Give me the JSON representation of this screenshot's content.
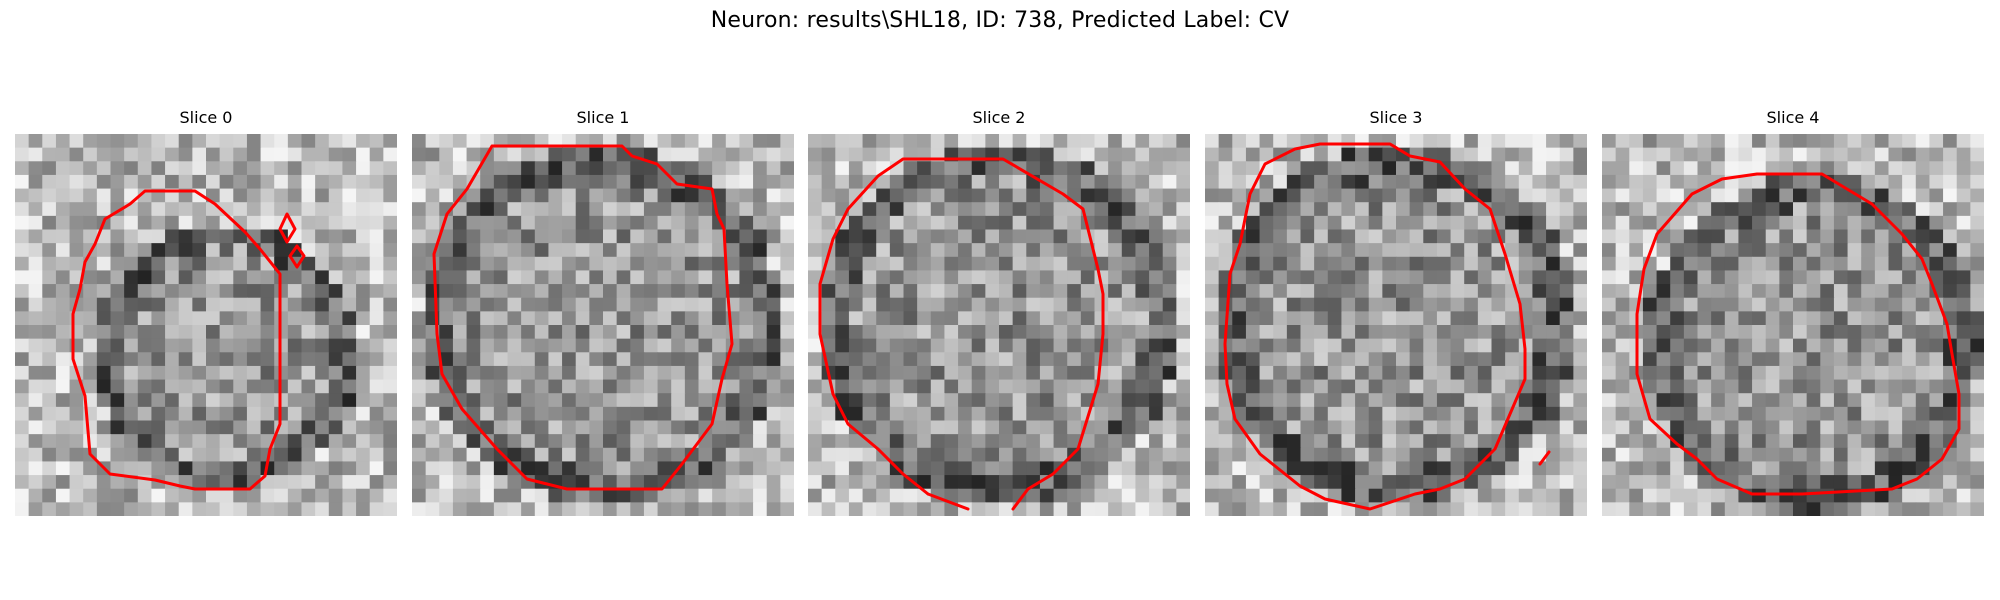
{
  "figure": {
    "title": "Neuron: results\\SHL18, ID: 738, Predicted Label: CV"
  },
  "contour_color": "#ff0000",
  "panels": [
    {
      "label": "Slice 0"
    },
    {
      "label": "Slice 1"
    },
    {
      "label": "Slice 2"
    },
    {
      "label": "Slice 3"
    },
    {
      "label": "Slice 4"
    }
  ]
}
